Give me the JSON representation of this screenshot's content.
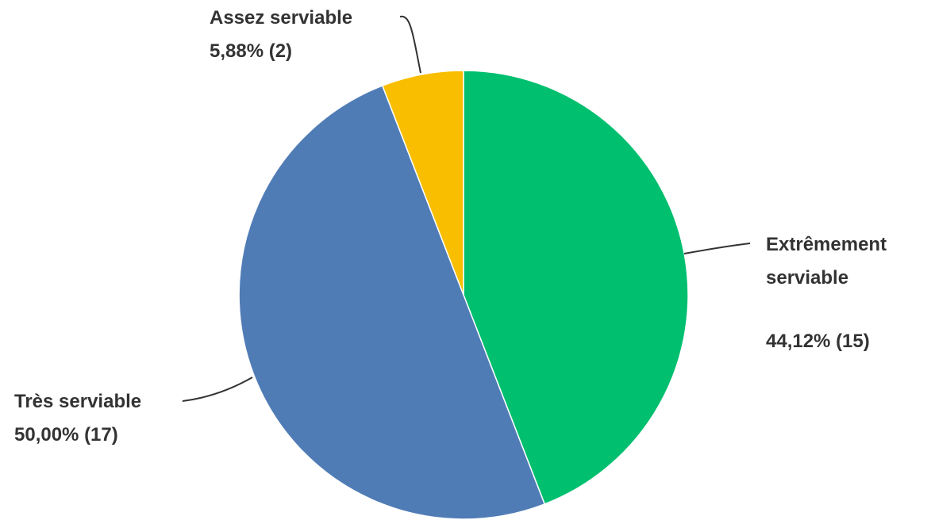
{
  "chart_data": {
    "type": "pie",
    "slices": [
      {
        "name": "Extrêmement serviable",
        "label_lines": [
          "Extrêmement",
          "serviable"
        ],
        "value_label": "44,12% (15)",
        "percent": 44.12,
        "count": 15,
        "color": "#00bf6f"
      },
      {
        "name": "Très serviable",
        "label_lines": [
          "Très serviable"
        ],
        "value_label": "50,00% (17)",
        "percent": 50.0,
        "count": 17,
        "color": "#507cb6"
      },
      {
        "name": "Assez serviable",
        "label_lines": [
          "Assez serviable"
        ],
        "value_label": "5,88% (2)",
        "percent": 5.88,
        "count": 2,
        "color": "#f9be00"
      }
    ],
    "start_angle_deg": 0,
    "direction": "clockwise"
  }
}
